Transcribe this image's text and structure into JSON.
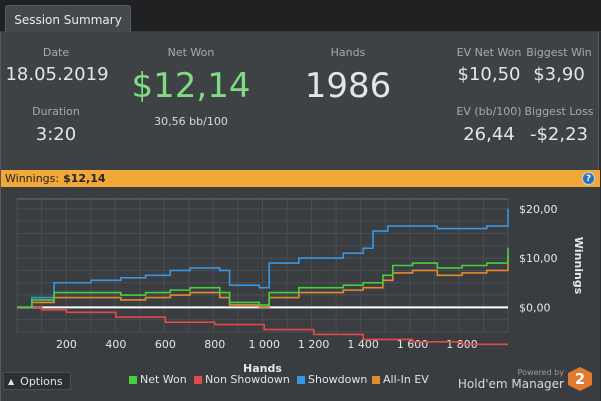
{
  "tab": {
    "label": "Session Summary"
  },
  "stats": {
    "date_label": "Date",
    "date": "18.05.2019",
    "duration_label": "Duration",
    "duration": "3:20",
    "net_won_label": "Net Won",
    "net_won": "$12,14",
    "bb100": "30,56 bb/100",
    "hands_label": "Hands",
    "hands": "1986",
    "ev_net_won_label": "EV Net Won",
    "ev_net_won": "$10,50",
    "biggest_win_label": "Biggest Win",
    "biggest_win": "$3,90",
    "ev_bb_label": "EV (bb/100)",
    "ev_bb": "26,44",
    "biggest_loss_label": "Biggest Loss",
    "biggest_loss": "-$2,23"
  },
  "winnings_bar": {
    "label": "Winnings:",
    "value": "$12,14",
    "help_icon": "help-icon"
  },
  "colors": {
    "net_won": "#43d13f",
    "non_showdown": "#e04a48",
    "showdown": "#3a95e0",
    "all_in_ev": "#e68a2e",
    "accent": "#f1a838"
  },
  "chart_data": {
    "type": "line",
    "xlabel": "Hands",
    "ylabel": "Winnings",
    "xlim": [
      0,
      1986
    ],
    "ylim": [
      -5,
      22
    ],
    "x_ticks": [
      200,
      400,
      600,
      800,
      1000,
      1200,
      1400,
      1600,
      1800
    ],
    "x_tick_labels": [
      "200",
      "400",
      "600",
      "800",
      "1 000",
      "1 200",
      "1 400",
      "1 600",
      "1 800"
    ],
    "y_ticks": [
      0,
      10,
      20
    ],
    "y_tick_labels": [
      "$0,00",
      "$10,00",
      "$20,00"
    ],
    "legend_position": "bottom",
    "series": [
      {
        "name": "Net Won",
        "color": "#43d13f",
        "x": [
          0,
          60,
          150,
          300,
          420,
          520,
          620,
          700,
          820,
          860,
          980,
          1020,
          1140,
          1260,
          1320,
          1400,
          1480,
          1520,
          1600,
          1700,
          1800,
          1900,
          1986
        ],
        "y": [
          0,
          1.5,
          3,
          3,
          2.5,
          3,
          3.5,
          4,
          3,
          1,
          0.5,
          3,
          4,
          4,
          4.5,
          5,
          6.5,
          8.5,
          9,
          8,
          8.5,
          9,
          12.14
        ]
      },
      {
        "name": "Non Showdown",
        "color": "#e04a48",
        "x": [
          0,
          100,
          200,
          400,
          600,
          800,
          1000,
          1200,
          1400,
          1600,
          1800,
          1986
        ],
        "y": [
          0,
          -0.5,
          -1,
          -2,
          -3,
          -3.5,
          -4.5,
          -5.5,
          -6.5,
          -7,
          -7.5,
          -7.5
        ]
      },
      {
        "name": "Showdown",
        "color": "#3a95e0",
        "x": [
          0,
          60,
          150,
          300,
          420,
          520,
          620,
          700,
          820,
          860,
          980,
          1020,
          1140,
          1260,
          1320,
          1400,
          1440,
          1500,
          1600,
          1700,
          1800,
          1900,
          1986
        ],
        "y": [
          0,
          2,
          5,
          5.5,
          6,
          6.5,
          7.5,
          8,
          7.5,
          4.5,
          4,
          9,
          10,
          10,
          11,
          12,
          15.5,
          16.5,
          16.5,
          16,
          16,
          16.5,
          20
        ]
      },
      {
        "name": "All-In EV",
        "color": "#e68a2e",
        "x": [
          0,
          60,
          150,
          300,
          420,
          520,
          620,
          700,
          820,
          860,
          980,
          1020,
          1140,
          1260,
          1320,
          1400,
          1480,
          1520,
          1600,
          1700,
          1800,
          1900,
          1986
        ],
        "y": [
          0,
          1,
          2,
          2,
          1.5,
          2,
          2.5,
          3,
          2,
          0.5,
          0,
          2,
          3,
          3,
          3.5,
          4,
          5.5,
          7,
          7.5,
          6.5,
          7,
          7.5,
          10.5
        ]
      }
    ]
  },
  "options_button": {
    "label": "Options"
  },
  "branding": {
    "powered_by": "Powered by",
    "name": "Hold'em Manager",
    "logo_text": "2"
  }
}
